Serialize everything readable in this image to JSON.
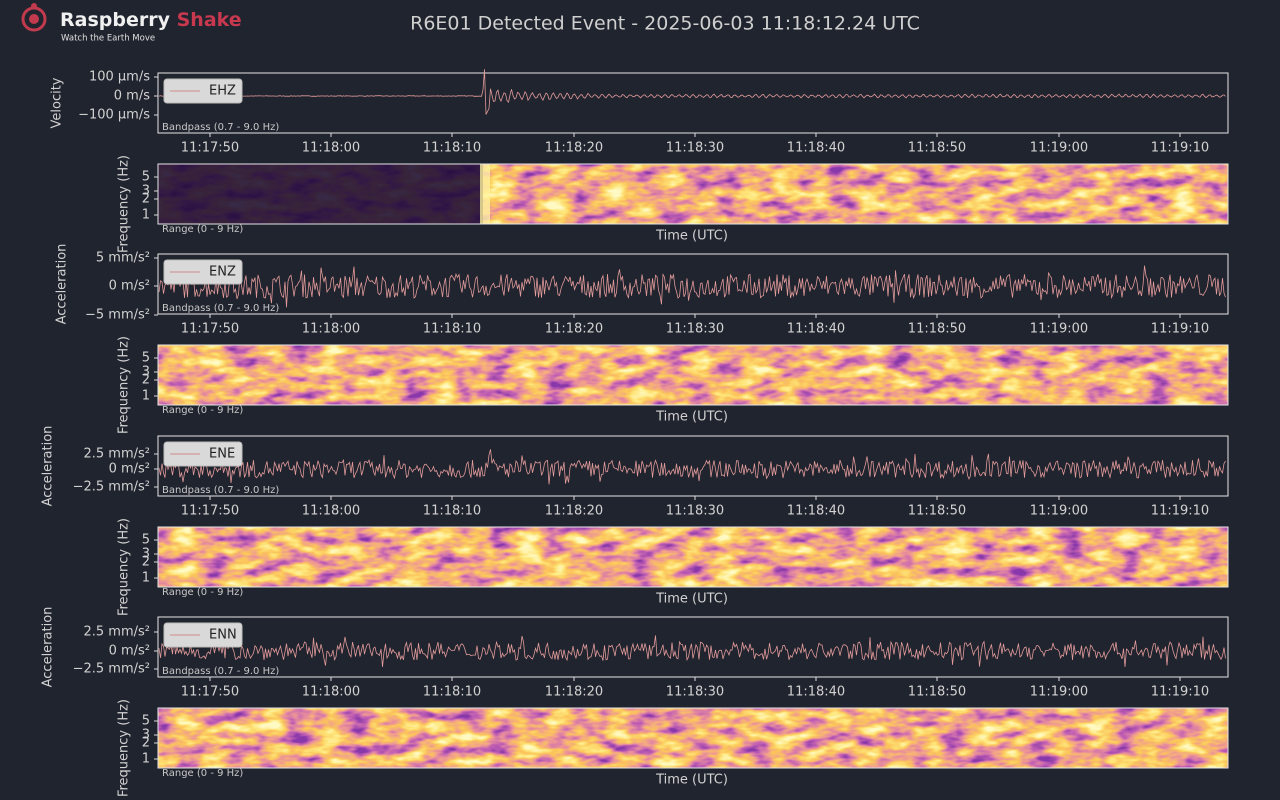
{
  "header": {
    "brand_first": "Raspberry",
    "brand_second": "Shake",
    "tagline": "Watch the Earth Move",
    "title": "R6E01 Detected Event - 2025-06-03 11:18:12.24 UTC"
  },
  "time_ticks": [
    "11:17:50",
    "11:18:00",
    "11:18:10",
    "11:18:20",
    "11:18:30",
    "11:18:40",
    "11:18:50",
    "11:19:00",
    "11:19:10"
  ],
  "panels": [
    {
      "ylabel": "Velocity",
      "yticks": [
        "100 μm/s",
        "0 m/s",
        "−100 μm/s"
      ],
      "legend": "EHZ",
      "filter_note": "Bandpass (0.7 - 9.0 Hz)",
      "spectrogram": {
        "ylabel": "Frequency (Hz)",
        "yticks": [
          5,
          3,
          2,
          1
        ],
        "range_note": "Range (0 - 9 Hz)",
        "xlabel": "Time (UTC)"
      }
    },
    {
      "ylabel": "Acceleration",
      "yticks": [
        "5 mm/s²",
        "0 m/s²",
        "−5 mm/s²"
      ],
      "legend": "ENZ",
      "filter_note": "Bandpass (0.7 - 9.0 Hz)",
      "spectrogram": {
        "ylabel": "Frequency (Hz)",
        "yticks": [
          5,
          3,
          2,
          1
        ],
        "range_note": "Range (0 - 9 Hz)",
        "xlabel": "Time (UTC)"
      }
    },
    {
      "ylabel": "Acceleration",
      "yticks": [
        "2.5 mm/s²",
        "0 m/s²",
        "−2.5 mm/s²"
      ],
      "legend": "ENE",
      "filter_note": "Bandpass (0.7 - 9.0 Hz)",
      "spectrogram": {
        "ylabel": "Frequency (Hz)",
        "yticks": [
          5,
          3,
          2,
          1
        ],
        "range_note": "Range (0 - 9 Hz)",
        "xlabel": "Time (UTC)"
      }
    },
    {
      "ylabel": "Acceleration",
      "yticks": [
        "2.5 mm/s²",
        "0 m/s²",
        "−2.5 mm/s²"
      ],
      "legend": "ENN",
      "filter_note": "Bandpass (0.7 - 9.0 Hz)",
      "spectrogram": {
        "ylabel": "Frequency (Hz)",
        "yticks": [
          5,
          3,
          2,
          1
        ],
        "range_note": "Range (0 - 9 Hz)",
        "xlabel": "Time (UTC)"
      }
    }
  ]
}
